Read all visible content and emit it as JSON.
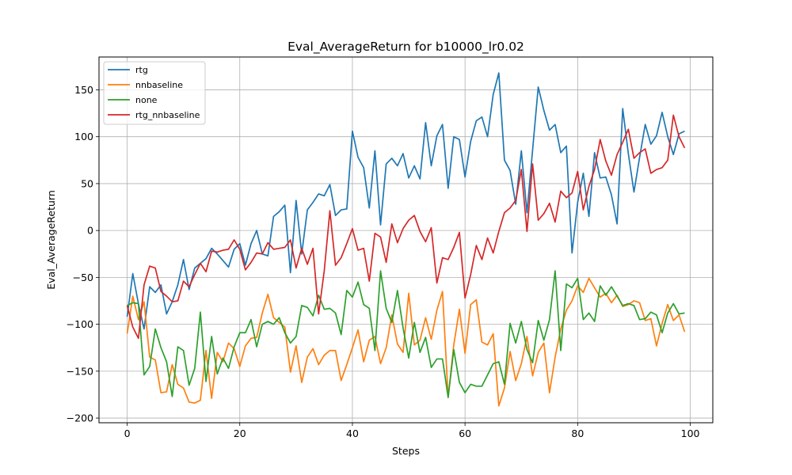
{
  "chart_data": {
    "type": "line",
    "title": "Eval_AverageReturn for b10000_lr0.02",
    "xlabel": "Steps",
    "ylabel": "Eval_AverageReturn",
    "xlim": [
      -5,
      104
    ],
    "ylim": [
      -205,
      185
    ],
    "xticks": [
      0,
      20,
      40,
      60,
      80,
      100
    ],
    "yticks": [
      -200,
      -150,
      -100,
      -50,
      0,
      50,
      100,
      150
    ],
    "grid": true,
    "legend_position": "top-left",
    "series": [
      {
        "name": "rtg",
        "color": "#1f77b4",
        "values": [
          -92,
          -46,
          -78,
          -105,
          -60,
          -66,
          -58,
          -89,
          -76,
          -58,
          -31,
          -63,
          -40,
          -35,
          -30,
          -19,
          -25,
          -32,
          -39,
          -20,
          -14,
          -37,
          -14,
          0,
          -25,
          -27,
          15,
          20,
          27,
          -45,
          32,
          -25,
          22,
          30,
          39,
          37,
          49,
          16,
          22,
          23,
          106,
          78,
          67,
          24,
          85,
          6,
          71,
          77,
          69,
          82,
          56,
          69,
          55,
          115,
          69,
          101,
          113,
          45,
          100,
          97,
          57,
          95,
          117,
          121,
          100,
          145,
          168,
          75,
          64,
          28,
          85,
          19,
          86,
          153,
          128,
          107,
          113,
          83,
          90,
          -24,
          30,
          61,
          15,
          83,
          56,
          57,
          38,
          7,
          130,
          82,
          41,
          78,
          113,
          92,
          101,
          126,
          100,
          81,
          103,
          106
        ]
      },
      {
        "name": "nnbaseline",
        "color": "#ff7f0e",
        "values": [
          -110,
          -70,
          -95,
          -76,
          -135,
          -138,
          -173,
          -172,
          -143,
          -164,
          -168,
          -183,
          -184,
          -181,
          -128,
          -179,
          -130,
          -140,
          -120,
          -126,
          -145,
          -123,
          -115,
          -114,
          -88,
          -68,
          -93,
          -98,
          -103,
          -151,
          -123,
          -162,
          -135,
          -126,
          -143,
          -133,
          -128,
          -128,
          -160,
          -143,
          -125,
          -106,
          -140,
          -117,
          -113,
          -142,
          -125,
          -90,
          -121,
          -130,
          -67,
          -122,
          -117,
          -93,
          -116,
          -85,
          -65,
          -178,
          -122,
          -84,
          -131,
          -79,
          -74,
          -119,
          -122,
          -110,
          -187,
          -168,
          -129,
          -160,
          -142,
          -113,
          -155,
          -130,
          -120,
          -173,
          -135,
          -105,
          -85,
          -75,
          -59,
          -66,
          -51,
          -61,
          -71,
          -67,
          -77,
          -69,
          -81,
          -79,
          -75,
          -77,
          -96,
          -94,
          -123,
          -99,
          -79,
          -96,
          -90,
          -108
        ]
      },
      {
        "name": "none",
        "color": "#2ca02c",
        "values": [
          -80,
          -77,
          -78,
          -154,
          -145,
          -105,
          -125,
          -140,
          -177,
          -124,
          -128,
          -165,
          -147,
          -87,
          -161,
          -113,
          -153,
          -136,
          -147,
          -124,
          -109,
          -109,
          -95,
          -124,
          -100,
          -97,
          -100,
          -93,
          -109,
          -120,
          -113,
          -80,
          -82,
          -91,
          -69,
          -84,
          -83,
          -88,
          -111,
          -64,
          -71,
          -55,
          -79,
          -83,
          -128,
          -43,
          -83,
          -98,
          -64,
          -104,
          -136,
          -98,
          -130,
          -114,
          -146,
          -137,
          -137,
          -178,
          -127,
          -162,
          -173,
          -164,
          -166,
          -166,
          -154,
          -142,
          -140,
          -164,
          -99,
          -120,
          -97,
          -127,
          -141,
          -96,
          -117,
          -95,
          -43,
          -128,
          -57,
          -61,
          -51,
          -95,
          -88,
          -97,
          -59,
          -69,
          -60,
          -70,
          -80,
          -78,
          -80,
          -95,
          -94,
          -87,
          -90,
          -109,
          -88,
          -78,
          -89,
          -88
        ]
      },
      {
        "name": "rtg_nnbaseline",
        "color": "#d62728",
        "values": [
          -80,
          -103,
          -115,
          -58,
          -38,
          -40,
          -65,
          -70,
          -76,
          -75,
          -54,
          -60,
          -47,
          -35,
          -44,
          -22,
          -23,
          -21,
          -20,
          -10,
          -20,
          -42,
          -34,
          -24,
          -25,
          -13,
          -20,
          -19,
          -18,
          -10,
          -40,
          -19,
          -36,
          -19,
          -89,
          -43,
          21,
          -37,
          -29,
          -14,
          2,
          -21,
          -19,
          -54,
          -3,
          -7,
          -34,
          7,
          -13,
          2,
          11,
          16,
          -1,
          -12,
          3,
          -56,
          -29,
          -31,
          -18,
          -2,
          -72,
          -47,
          -16,
          -31,
          -8,
          -24,
          -1,
          19,
          24,
          32,
          65,
          -1,
          71,
          11,
          18,
          29,
          9,
          42,
          35,
          40,
          63,
          22,
          47,
          65,
          97,
          74,
          59,
          81,
          94,
          108,
          77,
          83,
          87,
          61,
          65,
          67,
          75,
          123,
          100,
          88
        ]
      }
    ]
  }
}
